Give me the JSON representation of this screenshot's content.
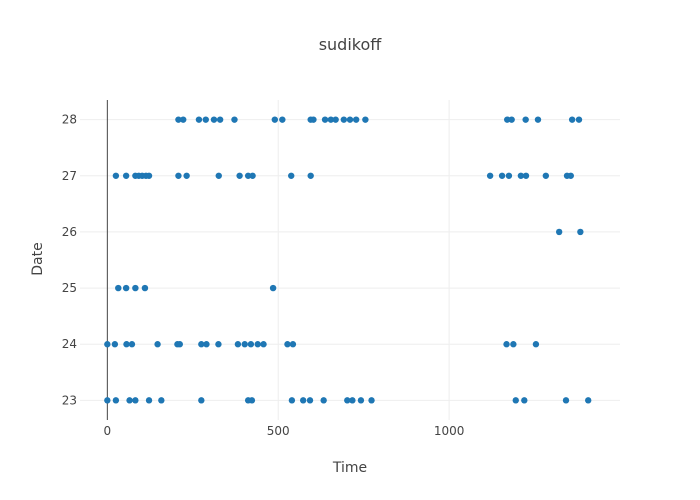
{
  "chart_data": {
    "type": "scatter",
    "title": "sudikoff",
    "xlabel": "Time",
    "ylabel": "Date",
    "xlim": [
      -80,
      1500
    ],
    "ylim": [
      22.65,
      28.35
    ],
    "xticks": [
      0,
      500,
      1000
    ],
    "yticks": [
      23,
      24,
      25,
      26,
      27,
      28
    ],
    "grid": true,
    "color": "#1f77b4",
    "series": [
      {
        "x": [
          208,
          222,
          268,
          288,
          312,
          330,
          372,
          490,
          512,
          595,
          603,
          637,
          654,
          668,
          692,
          710,
          728,
          755,
          1170,
          1183,
          1224,
          1260,
          1360,
          1380,
          25,
          55,
          82,
          92,
          102,
          113,
          122,
          208,
          232,
          326,
          387,
          412,
          425,
          538,
          595,
          1120,
          1155,
          1175,
          1210,
          1225,
          1283,
          1345,
          1356,
          1322,
          1384,
          32,
          55,
          82,
          110,
          485,
          0,
          22,
          56,
          72,
          147,
          205,
          212,
          275,
          290,
          325,
          382,
          402,
          420,
          440,
          457,
          527,
          543,
          1168,
          1188,
          1254,
          0,
          25,
          65,
          82,
          122,
          158,
          275,
          412,
          423,
          540,
          573,
          593,
          633,
          702,
          717,
          742,
          773,
          1195,
          1220,
          1342,
          1407
        ],
        "y": [
          28,
          28,
          28,
          28,
          28,
          28,
          28,
          28,
          28,
          28,
          28,
          28,
          28,
          28,
          28,
          28,
          28,
          28,
          28,
          28,
          28,
          28,
          28,
          28,
          27,
          27,
          27,
          27,
          27,
          27,
          27,
          27,
          27,
          27,
          27,
          27,
          27,
          27,
          27,
          27,
          27,
          27,
          27,
          27,
          27,
          27,
          27,
          26,
          26,
          25,
          25,
          25,
          25,
          25,
          24,
          24,
          24,
          24,
          24,
          24,
          24,
          24,
          24,
          24,
          24,
          24,
          24,
          24,
          24,
          24,
          24,
          24,
          24,
          24,
          23,
          23,
          23,
          23,
          23,
          23,
          23,
          23,
          23,
          23,
          23,
          23,
          23,
          23,
          23,
          23,
          23,
          23,
          23,
          23,
          23
        ]
      }
    ]
  }
}
